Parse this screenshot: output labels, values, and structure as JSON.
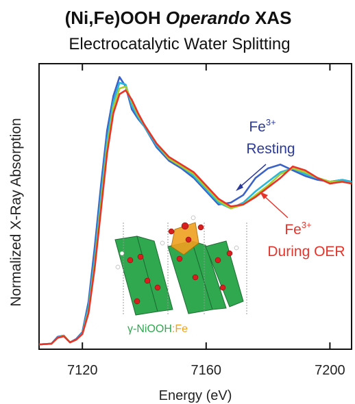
{
  "chart_data": {
    "type": "line",
    "title": [
      "(Ni,Fe)OOH",
      "Operando",
      "XAS"
    ],
    "subtitle": "Electrocatalytic Water Splitting",
    "x_label": "Energy (eV)",
    "y_label": "Normalized X-Ray Absorption",
    "x": [
      7106,
      7110,
      7112,
      7114,
      7116,
      7118,
      7120,
      7122,
      7124,
      7126,
      7128,
      7130,
      7132,
      7134,
      7136,
      7138,
      7140,
      7144,
      7148,
      7152,
      7156,
      7160,
      7164,
      7168,
      7172,
      7176,
      7180,
      7184,
      7188,
      7192,
      7196,
      7200,
      7204,
      7207
    ],
    "series": [
      {
        "color": "#3a62c8",
        "values": [
          0.025,
          0.029,
          0.065,
          0.072,
          0.036,
          0.054,
          0.09,
          0.25,
          0.54,
          0.86,
          1.15,
          1.33,
          1.43,
          1.38,
          1.26,
          1.21,
          1.17,
          1.06,
          0.99,
          0.95,
          0.9,
          0.83,
          0.76,
          0.77,
          0.81,
          0.9,
          0.95,
          0.97,
          0.94,
          0.91,
          0.89,
          0.88,
          0.89,
          0.88
        ]
      },
      {
        "color": "#29b6d8",
        "values": [
          0.025,
          0.029,
          0.062,
          0.07,
          0.036,
          0.05,
          0.085,
          0.22,
          0.48,
          0.8,
          1.1,
          1.3,
          1.4,
          1.39,
          1.28,
          1.22,
          1.17,
          1.07,
          1.0,
          0.96,
          0.91,
          0.84,
          0.77,
          0.74,
          0.77,
          0.83,
          0.88,
          0.93,
          0.95,
          0.92,
          0.9,
          0.88,
          0.89,
          0.88
        ]
      },
      {
        "color": "#a8cf2e",
        "values": [
          0.025,
          0.029,
          0.06,
          0.07,
          0.036,
          0.05,
          0.08,
          0.2,
          0.45,
          0.76,
          1.06,
          1.27,
          1.37,
          1.38,
          1.3,
          1.23,
          1.18,
          1.08,
          1.0,
          0.96,
          0.92,
          0.85,
          0.78,
          0.74,
          0.76,
          0.81,
          0.86,
          0.92,
          0.95,
          0.93,
          0.9,
          0.88,
          0.88,
          0.87
        ]
      },
      {
        "color": "#e8332a",
        "values": [
          0.025,
          0.029,
          0.06,
          0.068,
          0.036,
          0.05,
          0.08,
          0.19,
          0.43,
          0.73,
          1.03,
          1.24,
          1.34,
          1.36,
          1.31,
          1.24,
          1.18,
          1.08,
          1.01,
          0.97,
          0.93,
          0.86,
          0.79,
          0.75,
          0.76,
          0.8,
          0.85,
          0.9,
          0.96,
          0.94,
          0.9,
          0.87,
          0.88,
          0.87
        ]
      }
    ],
    "xlim": [
      7106,
      7207
    ],
    "ylim": [
      0,
      1.5
    ],
    "xticks": [
      7120,
      7160,
      7200
    ],
    "grid": false,
    "annotations": [
      {
        "text": "Fe",
        "sup": "3+",
        "line2": "Resting",
        "color": "#2b3a9a"
      },
      {
        "text": "Fe",
        "sup": "3+",
        "line2": "During OER",
        "color": "#e8332a"
      }
    ],
    "inset_label": [
      "γ-NiOOH",
      ":Fe"
    ]
  }
}
